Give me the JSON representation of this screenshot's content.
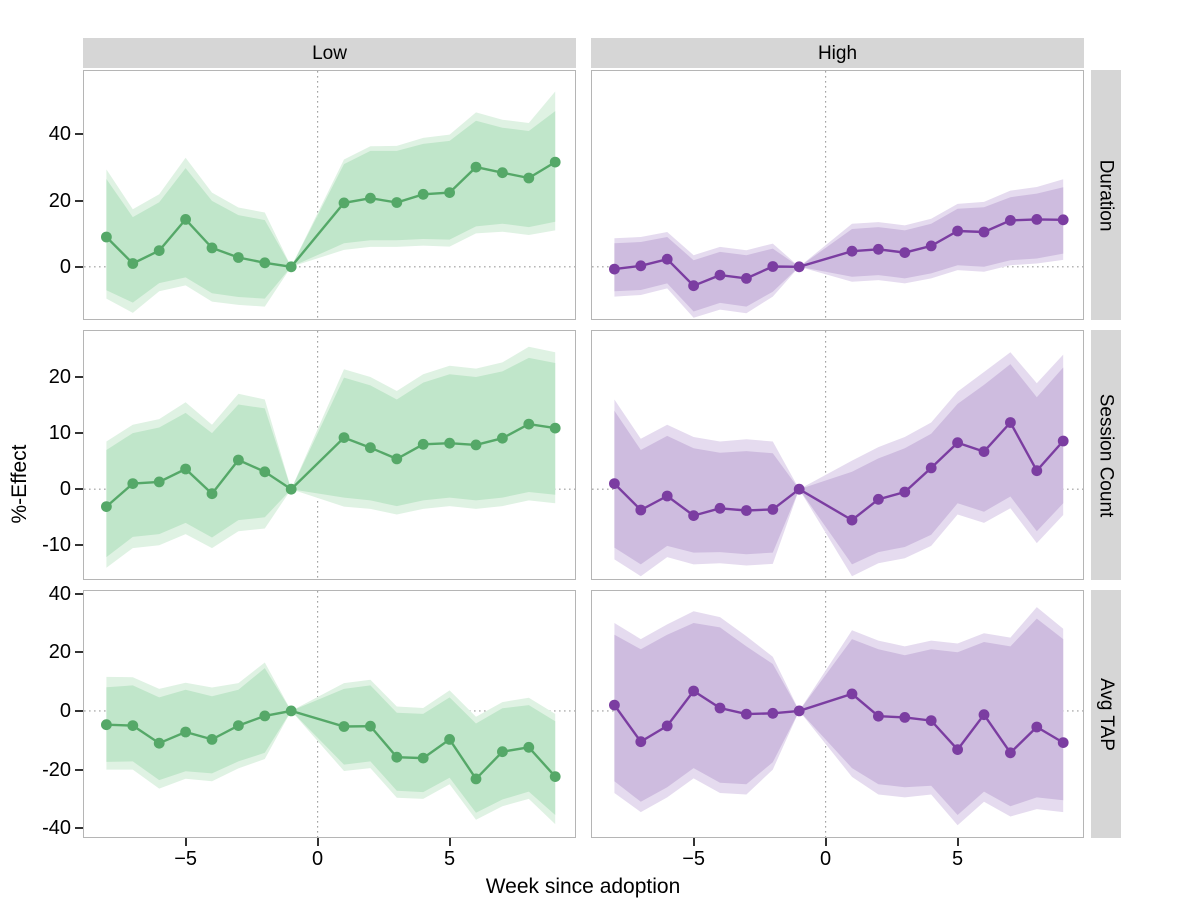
{
  "figure": {
    "x_axis_title": "Week since adoption",
    "y_axis_title": "%-Effect",
    "col_facets": [
      "Low",
      "High"
    ],
    "row_facets": [
      "Duration",
      "Session Count",
      "Avg TAP"
    ]
  },
  "colors": {
    "low_line": "#55a868",
    "low_ci_inner": "#c0e6ca",
    "low_ci_outer": "#dff2e3",
    "high_line": "#7b3da1",
    "high_ci_inner": "#cebcdf",
    "high_ci_outer": "#e5dbef",
    "strip_bg": "#d6d6d6",
    "panel_border": "#b5b5b5",
    "zero_guide": "#9e9e9e",
    "tick_mark": "#333333"
  },
  "chart_data": {
    "type": "line",
    "description": "Event-study style faceted chart: percent effect by week since adoption, with point estimates, inner and outer confidence ribbons. Columns = adoption group (Low, High); rows = outcome (Duration, Session Count, Avg TAP). Reference week -1 pinned at 0. Dotted reference lines at x=0 and y=0.",
    "x_label": "Week since adoption",
    "y_label": "%-Effect",
    "weeks": [
      -8,
      -7,
      -6,
      -5,
      -4,
      -3,
      -2,
      -1,
      1,
      2,
      3,
      4,
      5,
      6,
      7,
      8,
      9
    ],
    "xticks": [
      -5,
      0,
      5
    ],
    "xlim": [
      -8.85,
      9.75
    ],
    "grid": "no grid; dotted zero reference lines only",
    "legend": "none (color encodes column facet: Low=green, High=purple)",
    "rows": [
      {
        "label": "Duration",
        "yticks": [
          0,
          20,
          40
        ],
        "ylim": [
          -15.75,
          59.1
        ]
      },
      {
        "label": "Session Count",
        "yticks": [
          -10,
          0,
          10,
          20
        ],
        "ylim": [
          -16.0,
          28.2
        ]
      },
      {
        "label": "Avg TAP",
        "yticks": [
          -40,
          -20,
          0,
          20,
          40
        ],
        "ylim": [
          -43.0,
          40.9
        ]
      }
    ],
    "series": [
      {
        "row": "Duration",
        "col": "Low",
        "effect": [
          9.0,
          1.0,
          4.9,
          14.3,
          5.7,
          2.8,
          1.2,
          0,
          19.3,
          20.7,
          19.4,
          21.9,
          22.4,
          30.1,
          28.4,
          26.8,
          31.6
        ],
        "ci_inner_upper": [
          26.5,
          15.0,
          19.5,
          29.8,
          19.9,
          15.6,
          14.1,
          0,
          31.0,
          35.0,
          35.0,
          37.1,
          38.0,
          44.1,
          42.0,
          41.0,
          47.0
        ],
        "ci_inner_lower": [
          -7.1,
          -10.8,
          -4.9,
          -3.2,
          -8.0,
          -9.1,
          -9.6,
          0,
          7.1,
          8.0,
          8.0,
          8.4,
          8.2,
          12.2,
          13.0,
          12.0,
          13.6
        ],
        "ci_outer_upper": [
          29.4,
          17.4,
          21.9,
          32.9,
          22.4,
          17.9,
          16.4,
          0,
          32.4,
          36.4,
          36.5,
          38.9,
          39.9,
          46.6,
          44.4,
          43.4,
          52.9
        ],
        "ci_outer_lower": [
          -9.6,
          -13.9,
          -7.4,
          -5.6,
          -10.5,
          -11.5,
          -12.0,
          0,
          5.1,
          6.0,
          6.0,
          6.4,
          6.1,
          10.1,
          10.6,
          9.6,
          11.0
        ]
      },
      {
        "row": "Duration",
        "col": "High",
        "effect": [
          -0.7,
          0.3,
          2.3,
          -5.7,
          -2.5,
          -3.5,
          0.1,
          0,
          4.7,
          5.3,
          4.3,
          6.3,
          10.8,
          10.5,
          14.0,
          14.3,
          14.2
        ],
        "ci_inner_upper": [
          7.1,
          7.5,
          9.0,
          2.0,
          4.5,
          3.5,
          5.5,
          0,
          11.4,
          12.0,
          11.0,
          13.0,
          17.5,
          18.0,
          21.0,
          22.1,
          24.0
        ],
        "ci_inner_lower": [
          -7.4,
          -7.0,
          -5.0,
          -13.5,
          -10.9,
          -12.0,
          -7.5,
          0,
          -3.0,
          -2.5,
          -3.5,
          -2.0,
          0.5,
          0.0,
          2.0,
          2.5,
          4.0
        ],
        "ci_outer_upper": [
          8.6,
          9.0,
          10.5,
          3.5,
          6.0,
          5.0,
          7.0,
          0,
          13.0,
          13.5,
          12.5,
          14.5,
          19.0,
          19.6,
          23.0,
          24.1,
          26.4
        ],
        "ci_outer_lower": [
          -9.0,
          -8.5,
          -6.5,
          -15.4,
          -12.9,
          -14.0,
          -9.0,
          0,
          -4.5,
          -4.0,
          -5.0,
          -3.5,
          -1.0,
          -1.5,
          0.5,
          1.0,
          2.1
        ]
      },
      {
        "row": "Session Count",
        "col": "Low",
        "effect": [
          -3.1,
          1.0,
          1.3,
          3.6,
          -0.8,
          5.2,
          3.1,
          0,
          9.2,
          7.4,
          5.4,
          8.0,
          8.2,
          7.9,
          9.1,
          11.6,
          10.9
        ],
        "ci_inner_upper": [
          7.0,
          10.0,
          11.0,
          13.6,
          10.0,
          15.1,
          14.4,
          0,
          19.9,
          18.5,
          16.0,
          19.0,
          20.5,
          20.0,
          21.0,
          23.4,
          22.5
        ],
        "ci_inner_lower": [
          -12.1,
          -8.5,
          -8.0,
          -6.0,
          -8.6,
          -5.5,
          -5.0,
          0,
          -1.5,
          -2.0,
          -3.0,
          -2.0,
          -1.5,
          -2.0,
          -1.5,
          -0.5,
          -1.0
        ],
        "ci_outer_upper": [
          8.5,
          11.5,
          12.5,
          15.5,
          11.5,
          17.0,
          16.0,
          0,
          21.4,
          20.0,
          17.5,
          20.5,
          22.0,
          21.5,
          22.6,
          25.4,
          24.4
        ],
        "ci_outer_lower": [
          -14.0,
          -10.5,
          -10.0,
          -8.0,
          -10.5,
          -7.5,
          -7.0,
          0,
          -3.1,
          -3.5,
          -4.5,
          -3.5,
          -3.0,
          -3.5,
          -3.0,
          -2.0,
          -2.5
        ]
      },
      {
        "row": "Session Count",
        "col": "High",
        "effect": [
          1.0,
          -3.7,
          -1.2,
          -4.7,
          -3.4,
          -3.8,
          -3.6,
          0,
          -5.5,
          -1.8,
          -0.5,
          3.8,
          8.3,
          6.7,
          11.9,
          3.3,
          8.6
        ],
        "ci_inner_upper": [
          14.0,
          7.0,
          9.5,
          7.3,
          6.5,
          6.8,
          6.4,
          0,
          3.1,
          5.5,
          7.3,
          9.9,
          15.2,
          18.6,
          22.3,
          16.4,
          21.7
        ],
        "ci_inner_lower": [
          -10.4,
          -13.4,
          -10.1,
          -11.3,
          -11.2,
          -11.6,
          -11.3,
          0,
          -13.4,
          -11.2,
          -10.3,
          -8.1,
          -2.5,
          -4.0,
          -1.3,
          -7.5,
          -2.5
        ],
        "ci_outer_upper": [
          16.0,
          9.0,
          11.5,
          9.3,
          8.5,
          8.9,
          8.5,
          0,
          5.1,
          7.5,
          9.3,
          11.9,
          17.4,
          20.9,
          24.4,
          18.9,
          24.0
        ],
        "ci_outer_lower": [
          -12.5,
          -15.5,
          -12.1,
          -13.4,
          -13.2,
          -13.6,
          -13.3,
          0,
          -15.5,
          -13.2,
          -12.3,
          -10.1,
          -4.5,
          -6.0,
          -3.4,
          -9.6,
          -4.6
        ]
      },
      {
        "row": "Avg TAP",
        "col": "Low",
        "effect": [
          -4.7,
          -5.0,
          -11.0,
          -7.2,
          -9.7,
          -5.0,
          -1.7,
          0,
          -5.3,
          -5.2,
          -15.8,
          -16.1,
          -9.7,
          -23.2,
          -13.9,
          -12.4,
          -22.4
        ],
        "ci_inner_upper": [
          8.1,
          8.7,
          4.6,
          7.2,
          5.0,
          7.2,
          14.6,
          0,
          7.5,
          8.7,
          -0.6,
          -1.0,
          4.6,
          -4.3,
          0.9,
          2.0,
          -3.5
        ],
        "ci_inner_lower": [
          -17.4,
          -17.2,
          -23.6,
          -20.6,
          -21.3,
          -17.2,
          -14.3,
          0,
          -18.3,
          -17.2,
          -27.2,
          -27.7,
          -22.8,
          -34.7,
          -30.2,
          -27.5,
          -35.5
        ],
        "ci_outer_upper": [
          11.6,
          11.5,
          7.5,
          9.6,
          8.0,
          9.5,
          16.5,
          0,
          9.5,
          10.6,
          1.5,
          1.0,
          7.0,
          -2.0,
          3.0,
          4.5,
          -1.0
        ],
        "ci_outer_lower": [
          -20.0,
          -20.0,
          -26.5,
          -23.1,
          -24.0,
          -19.6,
          -16.4,
          0,
          -20.5,
          -19.5,
          -29.6,
          -30.0,
          -25.0,
          -37.1,
          -32.5,
          -30.0,
          -38.6
        ]
      },
      {
        "row": "Avg TAP",
        "col": "High",
        "effect": [
          2.0,
          -10.5,
          -5.1,
          6.8,
          1.0,
          -1.1,
          -0.8,
          0,
          5.8,
          -1.8,
          -2.2,
          -3.3,
          -13.2,
          -1.3,
          -14.3,
          -5.5,
          -10.8
        ],
        "ci_inner_upper": [
          26.0,
          21.0,
          26.0,
          30.0,
          28.5,
          22.0,
          16.0,
          0,
          24.5,
          21.0,
          19.0,
          21.0,
          20.0,
          23.5,
          22.0,
          31.5,
          24.5
        ],
        "ci_inner_lower": [
          -24.0,
          -31.0,
          -26.0,
          -19.5,
          -24.5,
          -25.0,
          -17.5,
          0,
          -19.5,
          -25.0,
          -26.0,
          -25.5,
          -35.5,
          -27.5,
          -32.5,
          -29.5,
          -30.5
        ],
        "ci_outer_upper": [
          30.0,
          24.5,
          29.5,
          34.0,
          32.0,
          25.5,
          18.5,
          0,
          27.5,
          24.0,
          22.0,
          24.0,
          23.0,
          26.5,
          25.0,
          35.4,
          28.0
        ],
        "ci_outer_lower": [
          -28.0,
          -34.5,
          -29.5,
          -23.0,
          -28.0,
          -28.5,
          -20.0,
          0,
          -22.5,
          -28.5,
          -29.5,
          -28.5,
          -39.0,
          -31.0,
          -36.0,
          -33.5,
          -34.5
        ]
      }
    ]
  }
}
